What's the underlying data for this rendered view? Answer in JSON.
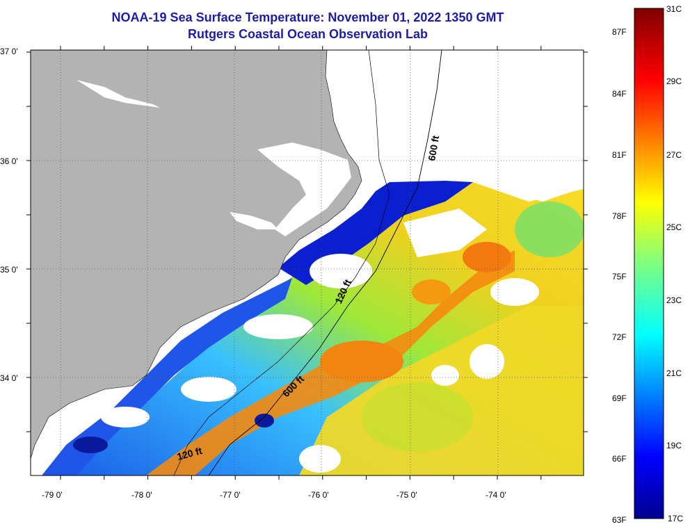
{
  "title": {
    "line1": "NOAA-19 Sea Surface Temperature:  November 01, 2022 1350 GMT",
    "line2": "Rutgers Coastal Ocean Observation Lab"
  },
  "map": {
    "lon_labels": [
      "-79 0'",
      "-78 0'",
      "-77 0'",
      "-76 0'",
      "-75 0'",
      "-74 0'"
    ],
    "lat_labels": [
      "37 0'",
      "36 0'",
      "35 0'",
      "34 0'"
    ],
    "depth_labels": [
      "600 ft",
      "120 ft",
      "600 ft",
      "120 ft"
    ],
    "colors": {
      "land": "#b3b3b3",
      "cloud": "#ffffff",
      "sst_low": "#0000c0",
      "sst_high": "#f07000"
    }
  },
  "colorbar": {
    "celsius_labels": [
      "31C",
      "29C",
      "27C",
      "25C",
      "23C",
      "21C",
      "19C",
      "17C"
    ],
    "fahrenheit_labels": [
      "87F",
      "84F",
      "81F",
      "78F",
      "75F",
      "72F",
      "69F",
      "66F",
      "63F"
    ],
    "range_c": [
      17,
      31
    ],
    "range_f": [
      63,
      87
    ]
  }
}
